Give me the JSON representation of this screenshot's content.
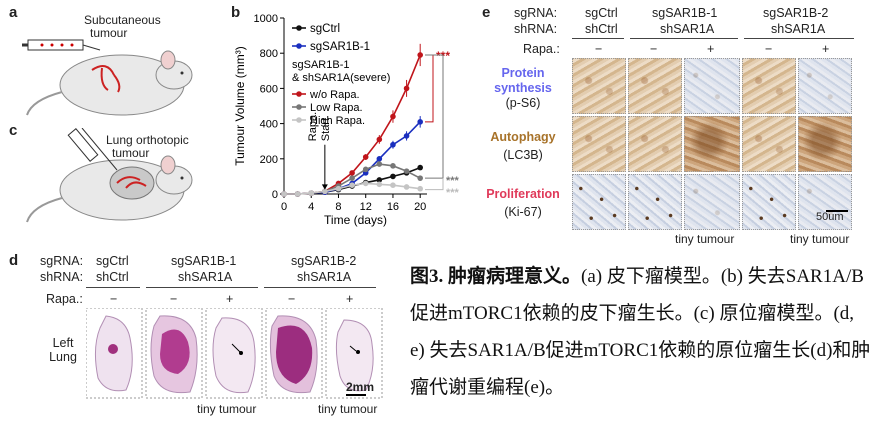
{
  "panels": {
    "a": {
      "letter": "a",
      "label_line1": "Subcutaneous",
      "label_line2": "tumour"
    },
    "c": {
      "letter": "c",
      "label_line1": "Lung orthotopic",
      "label_line2": "tumour"
    },
    "b": {
      "letter": "b",
      "legend": {
        "sgctrl": "sgCtrl",
        "sgsar1b": "sgSAR1B-1",
        "group_line1": "sgSAR1B-1",
        "group_line2": "& shSAR1A(severe)",
        "wo": "w/o Rapa.",
        "low": "Low Rapa.",
        "high": "High Rapa."
      },
      "annotation_line1": "Rapa.",
      "annotation_line2": "Start",
      "sig_red": "***",
      "sig_dark": "***",
      "sig_light": "***"
    },
    "d": {
      "letter": "d",
      "sgrna_label": "sgRNA:",
      "shrna_label": "shRNA:",
      "rapa_label": "Rapa.:",
      "groups": [
        {
          "sg": "sgCtrl",
          "sh": "shCtrl"
        },
        {
          "sg": "sgSAR1B-1",
          "sh": "shSAR1A"
        },
        {
          "sg": "sgSAR1B-2",
          "sh": "shSAR1A"
        }
      ],
      "rapa": [
        "−",
        "−",
        "+",
        "−",
        "+"
      ],
      "row_label_line1": "Left",
      "row_label_line2": "Lung",
      "scale": "2mm",
      "tiny1": "tiny tumour",
      "tiny2": "tiny tumour"
    },
    "e": {
      "letter": "e",
      "sgrna_label": "sgRNA:",
      "shrna_label": "shRNA:",
      "rapa_label": "Rapa.:",
      "groups": [
        {
          "sg": "sgCtrl",
          "sh": "shCtrl"
        },
        {
          "sg": "sgSAR1B-1",
          "sh": "shSAR1A"
        },
        {
          "sg": "sgSAR1B-2",
          "sh": "shSAR1A"
        }
      ],
      "rapa": [
        "−",
        "−",
        "+",
        "−",
        "+"
      ],
      "rows": [
        {
          "name_line1": "Protein",
          "name_line2": "synthesis",
          "marker": "(p-S6)",
          "color": "#6666ee"
        },
        {
          "name_line1": "Autophagy",
          "name_line2": "",
          "marker": "(LC3B)",
          "color": "#a8732a"
        },
        {
          "name_line1": "Proliferation",
          "name_line2": "",
          "marker": "(Ki-67)",
          "color": "#e03a5a"
        }
      ],
      "scale": "50um",
      "tiny1": "tiny tumour",
      "tiny2": "tiny tumour"
    }
  },
  "caption": {
    "fig": "图3. 肿瘤病理意义。",
    "p1": "(a) 皮下瘤模型。(b) 失去SAR1A/B促进mTORC1依赖的皮下瘤生长。(c) 原位瘤模型。(d, e) 失去SAR1A/B促进mTORC1依赖的原位瘤生长(d)和肿瘤代谢重编程(e)。"
  },
  "chart_data": {
    "type": "line",
    "title": "",
    "xlabel": "Time (days)",
    "ylabel": "Tumour Volume (mm³)",
    "xlim": [
      0,
      21
    ],
    "ylim": [
      0,
      1000
    ],
    "xticks": [
      0,
      4,
      8,
      12,
      16,
      20
    ],
    "yticks": [
      0,
      200,
      400,
      600,
      800,
      1000
    ],
    "rapa_start_day": 6,
    "series": [
      {
        "name": "sgCtrl",
        "color": "#111111",
        "x": [
          0,
          2,
          4,
          6,
          8,
          10,
          12,
          14,
          16,
          18,
          20
        ],
        "y": [
          0,
          0,
          5,
          10,
          25,
          45,
          65,
          80,
          100,
          120,
          150
        ]
      },
      {
        "name": "sgSAR1B-1",
        "color": "#1a2fbf",
        "x": [
          0,
          2,
          4,
          6,
          8,
          10,
          12,
          14,
          16,
          18,
          20
        ],
        "y": [
          0,
          0,
          5,
          10,
          30,
          60,
          120,
          200,
          280,
          330,
          410
        ]
      },
      {
        "name": "w/o Rapa.",
        "color": "#c0151b",
        "x": [
          0,
          2,
          4,
          6,
          8,
          10,
          12,
          14,
          16,
          18,
          20
        ],
        "y": [
          0,
          0,
          5,
          15,
          60,
          120,
          210,
          310,
          440,
          600,
          790
        ]
      },
      {
        "name": "Low Rapa.",
        "color": "#777777",
        "x": [
          0,
          2,
          4,
          6,
          8,
          10,
          12,
          14,
          16,
          18,
          20
        ],
        "y": [
          0,
          0,
          5,
          15,
          45,
          90,
          140,
          170,
          160,
          130,
          90
        ]
      },
      {
        "name": "High Rapa.",
        "color": "#c4c4c4",
        "x": [
          0,
          2,
          4,
          6,
          8,
          10,
          12,
          14,
          16,
          18,
          20
        ],
        "y": [
          0,
          0,
          5,
          15,
          30,
          50,
          60,
          55,
          50,
          40,
          30
        ]
      }
    ]
  }
}
